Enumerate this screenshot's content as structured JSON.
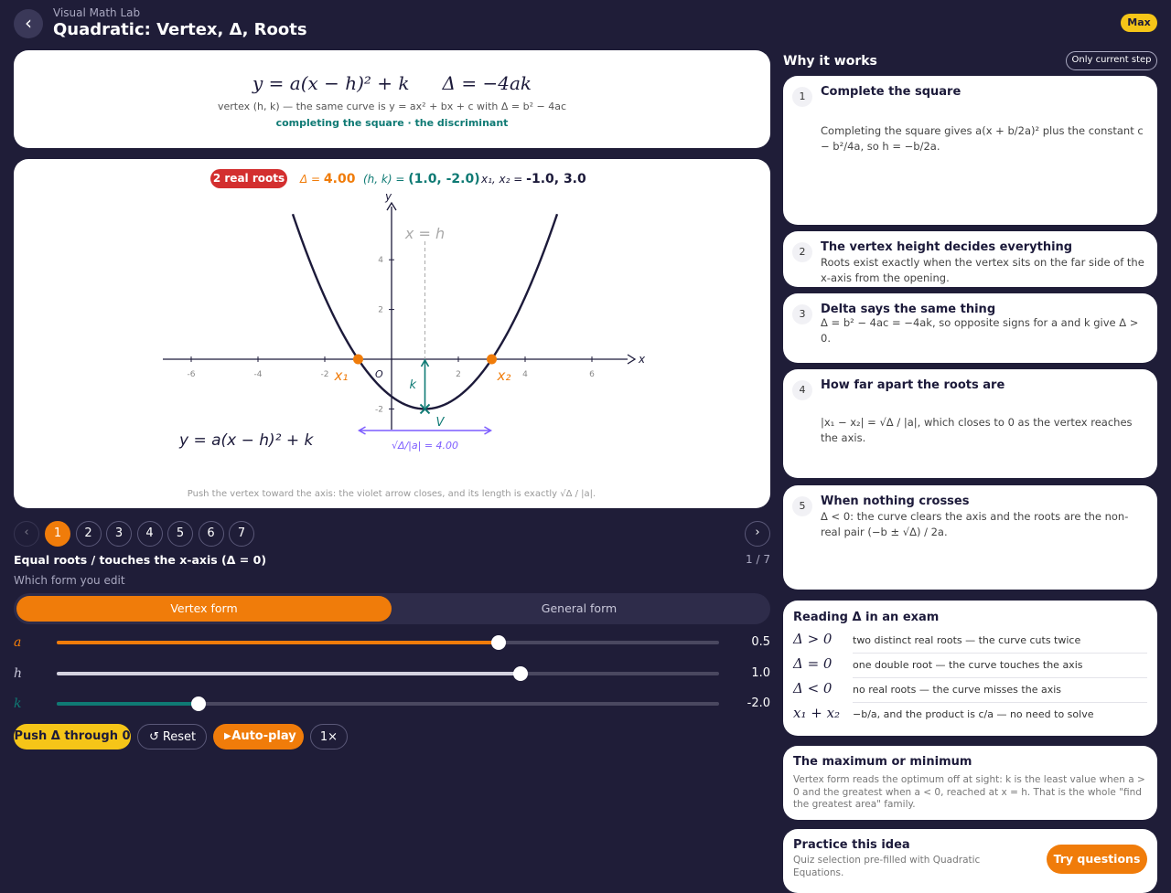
{
  "header": {
    "eyebrow": "Visual Math Lab",
    "title": "Quadratic: Vertex, Δ, Roots",
    "badge": "Max"
  },
  "formula_card": {
    "vertex_form": "y = a(x − h)² + k",
    "delta": "Δ = −4ak",
    "note": "vertex (h, k) — the same curve is y = ax² + bx + c with Δ = b² − 4ac",
    "links": "completing the square · the discriminant"
  },
  "graph": {
    "status": "2 real roots",
    "delta_label": "Δ = ",
    "delta": "4.00",
    "vertex_label": "(h, k) = ",
    "vertex": "(1.0, -2.0)",
    "roots_label": "x₁, x₂ = ",
    "roots": "-1.0, 3.0",
    "xticks": [
      -6,
      -4,
      -2,
      2,
      4,
      6
    ],
    "yticks": [
      -2,
      2,
      4
    ],
    "x_axis_label": "x",
    "y_axis_label": "y",
    "origin_label": "O",
    "curve_label": "y = a(x − h)² + k",
    "axis_of_symmetry_label": "x = h",
    "root_labels": [
      "x₁",
      "x₂"
    ],
    "k_label": "k",
    "vertex_point_label": "V",
    "width_label": "√Δ/|a| = 4.00",
    "curve_color": "#1c1a3a",
    "footnote": "Push the vertex toward the axis: the violet arrow closes, and its length is exactly √Δ / |a|."
  },
  "controls": {
    "heading": "Equal roots / touches the x-axis (Δ = 0)",
    "counter": "1 / 7",
    "steps": [
      1,
      2,
      3,
      4,
      5,
      6,
      7
    ],
    "form_label": "Which form you edit",
    "tabs": [
      "Vertex form",
      "General form"
    ],
    "sliders": [
      {
        "name": "a",
        "value": 0.5,
        "value_label": "0.5",
        "range": [
          -1.5,
          1.5
        ],
        "color": "#f07c0a"
      },
      {
        "name": "h",
        "value": 1,
        "value_label": "1.0",
        "range": [
          -2.5,
          2.5
        ],
        "color": "#d4d3e0"
      },
      {
        "name": "k",
        "value": -2,
        "value_label": "-2.0",
        "range": [
          -3.5,
          3.5
        ],
        "color": "#0f7a74"
      }
    ],
    "buttons": [
      "Push Δ through 0",
      "Reset",
      "Auto-play",
      "1×"
    ]
  },
  "why": {
    "title": "Why it works",
    "filter": "Only current step",
    "steps": [
      {
        "n": 1,
        "title": "Complete the square",
        "body": "Completing the square gives a(x + b/2a)² plus the constant c − b²/4a, so h = −b/2a."
      },
      {
        "n": 2,
        "title": "The vertex height decides everything",
        "body": "Roots exist exactly when the vertex sits on the far side of the x-axis from the opening."
      },
      {
        "n": 3,
        "title": "Delta says the same thing",
        "body": "Δ = b² − 4ac = −4ak, so opposite signs for a and k give Δ > 0."
      },
      {
        "n": 4,
        "title": "How far apart the roots are",
        "body": "|x₁ − x₂| = √Δ / |a|, which closes to 0 as the vertex reaches the axis."
      },
      {
        "n": 5,
        "title": "When nothing crosses",
        "body": "Δ < 0: the curve clears the axis and the roots are the non-real pair (−b ± √Δ) / 2a."
      }
    ]
  },
  "exam": {
    "title": "Reading Δ in an exam",
    "rows": [
      [
        "Δ > 0",
        "two distinct real roots — the curve cuts twice"
      ],
      [
        "Δ = 0",
        "one double root — the curve touches the axis"
      ],
      [
        "Δ < 0",
        "no real roots — the curve misses the axis"
      ],
      [
        "x₁ + x₂",
        "−b/a, and the product is c/a — no need to solve"
      ]
    ]
  },
  "optimum": {
    "title": "The maximum or minimum",
    "body": "Vertex form reads the optimum off at sight: k is the least value when a > 0 and the greatest when a < 0, reached at x = h. That is the whole \"find the greatest area\" family."
  },
  "practice": {
    "title": "Practice this idea",
    "body": "Quiz selection pre-filled with Quadratic Equations.",
    "button": "Try questions"
  }
}
